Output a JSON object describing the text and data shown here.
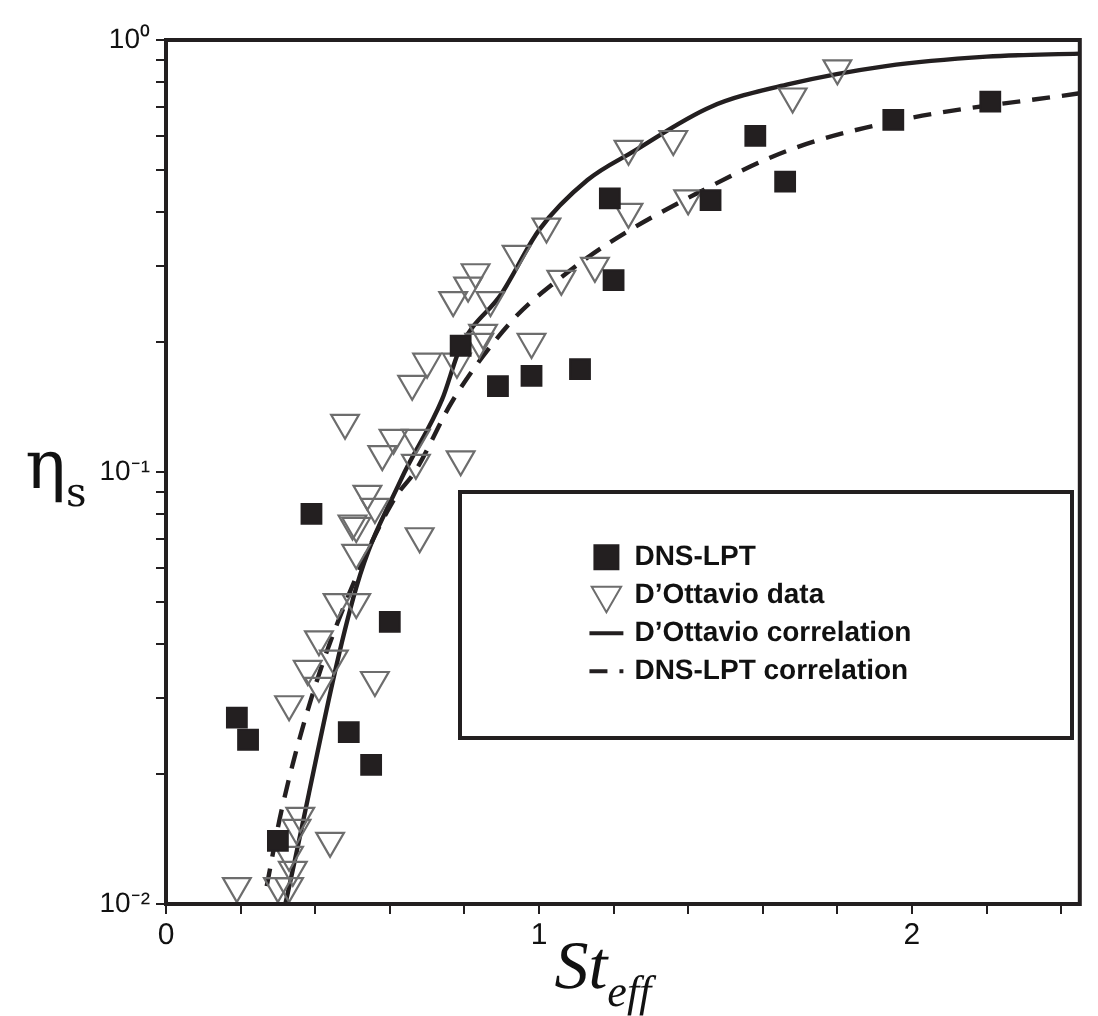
{
  "chart_data": {
    "type": "scatter",
    "xlabel": "St$_{eff}$",
    "ylabel": "η$_{s}$",
    "xlim": [
      0,
      2.45
    ],
    "ylim": [
      0.01,
      1
    ],
    "log": "y",
    "grid": false,
    "legend": "right",
    "xticks": [
      0,
      {
        "value": 0.2,
        "label": null
      },
      {
        "value": 0.4,
        "label": null
      },
      {
        "value": 0.6,
        "label": null
      },
      {
        "value": 0.8,
        "label": null
      },
      1,
      {
        "value": 1.2,
        "label": null
      },
      {
        "value": 1.4,
        "label": null
      },
      {
        "value": 1.6,
        "label": null
      },
      {
        "value": 1.8,
        "label": null
      },
      2,
      {
        "value": 2.2,
        "label": null
      },
      {
        "value": 2.4,
        "label": null
      }
    ],
    "yticks": [
      {
        "value": 0.01,
        "label": "10⁻²"
      },
      {
        "value": 0.02,
        "label": null
      },
      {
        "value": 0.03,
        "label": null
      },
      {
        "value": 0.04,
        "label": null
      },
      {
        "value": 0.05,
        "label": null
      },
      {
        "value": 0.06,
        "label": null
      },
      {
        "value": 0.07,
        "label": null
      },
      {
        "value": 0.08,
        "label": null
      },
      {
        "value": 0.09,
        "label": null
      },
      {
        "value": 0.1,
        "label": "10⁻¹"
      },
      {
        "value": 0.2,
        "label": null
      },
      {
        "value": 0.3,
        "label": null
      },
      {
        "value": 0.4,
        "label": null
      },
      {
        "value": 0.5,
        "label": null
      },
      {
        "value": 0.6,
        "label": null
      },
      {
        "value": 0.7,
        "label": null
      },
      {
        "value": 0.8,
        "label": null
      },
      {
        "value": 0.9,
        "label": null
      },
      {
        "value": 1,
        "label": "10⁰"
      }
    ],
    "series": [
      {
        "name": "DNS-LPT",
        "type": "scatter",
        "marker": "square",
        "color": "#231f20",
        "x": [
          1.19,
          1.2,
          0.79,
          0.89,
          0.98,
          1.11,
          0.39,
          1.58,
          1.46,
          1.66,
          1.95,
          2.21,
          0.6,
          0.19,
          0.22,
          0.49,
          0.55,
          0.3
        ],
        "values": [
          0.43,
          0.278,
          0.196,
          0.158,
          0.167,
          0.173,
          0.08,
          0.6,
          0.426,
          0.47,
          0.653,
          0.72,
          0.045,
          0.027,
          0.024,
          0.025,
          0.021,
          0.014
        ]
      },
      {
        "name": "D’Ottavio data",
        "type": "scatter",
        "marker": "triangle",
        "color": "#6d6d6d",
        "x": [
          1.24,
          1.02,
          0.94,
          0.83,
          0.81,
          0.77,
          0.87,
          0.85,
          0.84,
          0.98,
          1.06,
          1.15,
          1.24,
          0.7,
          0.66,
          0.78,
          0.48,
          0.61,
          0.58,
          0.67,
          0.67,
          0.79,
          0.54,
          0.56,
          0.5,
          1.36,
          1.68,
          1.8,
          1.4,
          0.51,
          0.68,
          0.51,
          0.46,
          0.51,
          0.41,
          0.45,
          0.38,
          0.41,
          0.56,
          0.33,
          0.36,
          0.35,
          0.44,
          0.33,
          0.34,
          0.3,
          0.19,
          0.33
        ],
        "values": [
          0.56,
          0.37,
          0.32,
          0.29,
          0.27,
          0.25,
          0.25,
          0.21,
          0.2,
          0.2,
          0.28,
          0.3,
          0.4,
          0.18,
          0.16,
          0.18,
          0.13,
          0.12,
          0.11,
          0.12,
          0.105,
          0.107,
          0.089,
          0.083,
          0.076,
          0.59,
          0.74,
          0.86,
          0.43,
          0.075,
          0.071,
          0.065,
          0.05,
          0.05,
          0.041,
          0.037,
          0.035,
          0.032,
          0.033,
          0.029,
          0.016,
          0.015,
          0.014,
          0.013,
          0.012,
          0.011,
          0.011,
          0.011
        ]
      },
      {
        "name": "D’Ottavio correlation",
        "type": "line",
        "marker": "none",
        "line_style": "solid",
        "color": "#231f20",
        "x": [
          0.32,
          0.51,
          0.63,
          0.74,
          0.79,
          0.9,
          1.0,
          1.13,
          1.25,
          1.46,
          1.67,
          1.93,
          2.2,
          2.45
        ],
        "values": [
          0.01,
          0.054,
          0.096,
          0.147,
          0.195,
          0.259,
          0.363,
          0.474,
          0.55,
          0.7,
          0.79,
          0.87,
          0.915,
          0.93
        ]
      },
      {
        "name": "DNS-LPT correlation",
        "type": "line",
        "marker": "none",
        "line_style": "dashed",
        "color": "#231f20",
        "x": [
          0.27,
          0.31,
          0.39,
          0.49,
          0.61,
          0.67,
          0.77,
          0.93,
          1.05,
          1.19,
          1.42,
          1.67,
          1.97,
          2.45
        ],
        "values": [
          0.011,
          0.0165,
          0.03,
          0.052,
          0.086,
          0.101,
          0.147,
          0.225,
          0.278,
          0.34,
          0.44,
          0.556,
          0.653,
          0.753
        ]
      }
    ]
  }
}
